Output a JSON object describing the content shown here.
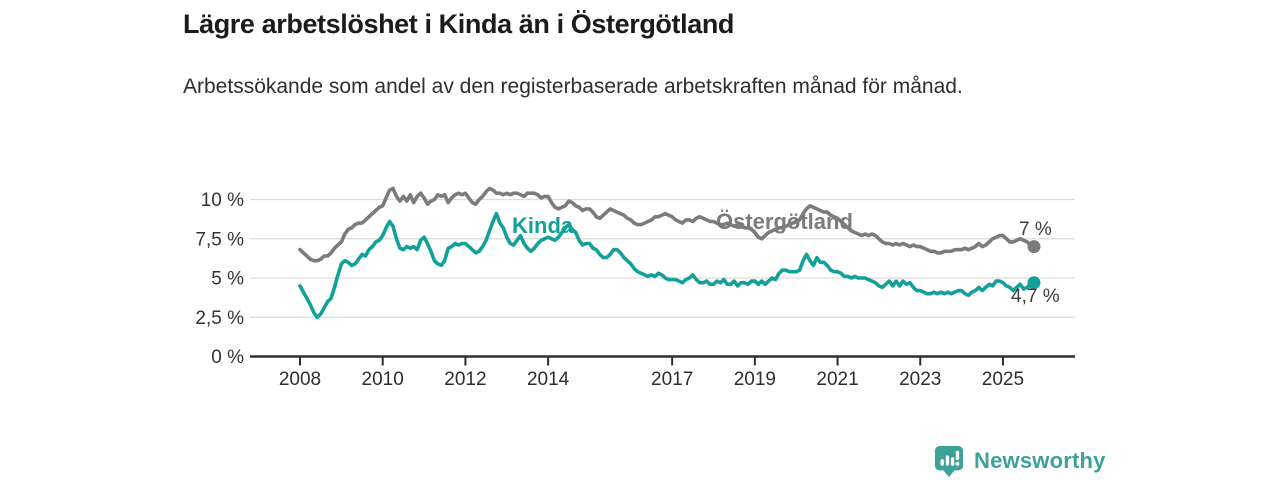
{
  "title": "Lägre arbetslöshet i Kinda än i Östergötland",
  "subtitle": "Arbetssökande som andel av den registerbaserade arbetskraften månad för månad.",
  "chart_data": {
    "type": "line",
    "unit": "%",
    "frequency": "monthly",
    "x_start": {
      "year": 2008,
      "month": 1
    },
    "x_end": {
      "year": 2025,
      "month": 10
    },
    "x_tick_years": [
      2008,
      2010,
      2012,
      2014,
      2017,
      2019,
      2021,
      2023,
      2025
    ],
    "y_ticks": [
      {
        "value": 0,
        "label": "0 %"
      },
      {
        "value": 2.5,
        "label": "2,5 %"
      },
      {
        "value": 5,
        "label": "5 %"
      },
      {
        "value": 7.5,
        "label": "7,5 %"
      },
      {
        "value": 10,
        "label": "10 %"
      }
    ],
    "ylim": [
      0,
      11
    ],
    "grid": "horizontal",
    "legend_position": "inline-labels",
    "series": [
      {
        "name": "Östergötland",
        "color": "#7b7b7b",
        "end_label": "7 %",
        "end_value": 7.0,
        "values": [
          6.8,
          6.6,
          6.4,
          6.2,
          6.1,
          6.1,
          6.2,
          6.4,
          6.4,
          6.6,
          6.9,
          7.1,
          7.3,
          7.8,
          8.1,
          8.2,
          8.4,
          8.5,
          8.5,
          8.7,
          8.9,
          9.1,
          9.3,
          9.5,
          9.6,
          10.1,
          10.6,
          10.7,
          10.2,
          9.9,
          10.2,
          9.9,
          10.3,
          9.8,
          10.2,
          10.4,
          10.1,
          9.7,
          9.9,
          10.0,
          10.3,
          10.2,
          10.3,
          9.8,
          10.1,
          10.3,
          10.4,
          10.3,
          10.4,
          10.1,
          9.8,
          9.7,
          10.0,
          10.2,
          10.5,
          10.7,
          10.6,
          10.4,
          10.4,
          10.3,
          10.4,
          10.3,
          10.4,
          10.4,
          10.3,
          10.2,
          10.4,
          10.4,
          10.4,
          10.3,
          10.1,
          10.2,
          10.2,
          9.8,
          9.5,
          9.4,
          9.5,
          9.6,
          9.9,
          9.8,
          9.6,
          9.5,
          9.3,
          9.4,
          9.4,
          9.2,
          8.9,
          8.8,
          9.0,
          9.2,
          9.4,
          9.3,
          9.2,
          9.1,
          9.0,
          8.8,
          8.7,
          8.5,
          8.4,
          8.4,
          8.5,
          8.6,
          8.7,
          8.9,
          8.9,
          9.0,
          9.1,
          9.0,
          8.9,
          8.7,
          8.6,
          8.5,
          8.7,
          8.7,
          8.6,
          8.8,
          8.9,
          8.8,
          8.7,
          8.6,
          8.6,
          8.5,
          8.4,
          8.4,
          8.5,
          8.4,
          8.3,
          8.4,
          8.3,
          8.2,
          8.2,
          8.1,
          7.9,
          7.6,
          7.5,
          7.7,
          7.9,
          8.0,
          8.1,
          8.2,
          8.2,
          8.3,
          8.4,
          8.5,
          8.6,
          8.7,
          9.1,
          9.4,
          9.6,
          9.5,
          9.4,
          9.3,
          9.2,
          9.2,
          9.0,
          8.9,
          8.8,
          8.6,
          8.4,
          8.2,
          8.0,
          7.9,
          7.8,
          7.7,
          7.8,
          7.7,
          7.8,
          7.7,
          7.5,
          7.3,
          7.2,
          7.2,
          7.1,
          7.2,
          7.1,
          7.2,
          7.1,
          7.0,
          7.1,
          7.0,
          7.0,
          6.9,
          6.8,
          6.7,
          6.7,
          6.6,
          6.6,
          6.7,
          6.7,
          6.7,
          6.8,
          6.8,
          6.8,
          6.9,
          6.8,
          6.9,
          7.0,
          7.2,
          7.0,
          7.1,
          7.3,
          7.5,
          7.6,
          7.7,
          7.7,
          7.5,
          7.3,
          7.3,
          7.4,
          7.5,
          7.4,
          7.3,
          7.1,
          7.0
        ]
      },
      {
        "name": "Kinda",
        "color": "#12a198",
        "end_label": "4,7 %",
        "end_value": 4.7,
        "values": [
          4.5,
          4.1,
          3.7,
          3.3,
          2.8,
          2.5,
          2.7,
          3.1,
          3.5,
          3.7,
          4.4,
          5.2,
          5.9,
          6.1,
          6.0,
          5.8,
          5.9,
          6.2,
          6.5,
          6.4,
          6.8,
          7.0,
          7.3,
          7.4,
          7.7,
          8.2,
          8.6,
          8.3,
          7.5,
          6.9,
          6.8,
          7.0,
          6.9,
          7.0,
          6.8,
          7.4,
          7.6,
          7.2,
          6.7,
          6.1,
          5.9,
          5.8,
          6.1,
          6.9,
          7.0,
          7.2,
          7.1,
          7.2,
          7.2,
          7.0,
          6.8,
          6.6,
          6.7,
          7.0,
          7.4,
          8.0,
          8.6,
          9.1,
          8.5,
          8.2,
          7.6,
          7.2,
          7.1,
          7.4,
          7.7,
          7.2,
          6.9,
          6.7,
          6.9,
          7.2,
          7.4,
          7.5,
          7.6,
          7.5,
          7.4,
          7.6,
          7.9,
          8.2,
          8.4,
          8.1,
          7.9,
          7.4,
          7.1,
          7.2,
          7.2,
          6.9,
          6.8,
          6.5,
          6.3,
          6.3,
          6.5,
          6.8,
          6.8,
          6.6,
          6.3,
          6.1,
          5.9,
          5.6,
          5.4,
          5.3,
          5.2,
          5.1,
          5.2,
          5.1,
          5.3,
          5.2,
          5.0,
          4.9,
          4.9,
          4.9,
          4.8,
          4.7,
          4.9,
          5.0,
          5.2,
          4.9,
          4.7,
          4.7,
          4.8,
          4.6,
          4.6,
          4.8,
          4.7,
          4.9,
          4.6,
          4.6,
          4.8,
          4.5,
          4.7,
          4.7,
          4.6,
          4.8,
          4.8,
          4.6,
          4.8,
          4.6,
          4.8,
          5.0,
          4.9,
          5.3,
          5.5,
          5.5,
          5.4,
          5.4,
          5.4,
          5.5,
          6.1,
          6.5,
          6.1,
          5.8,
          6.3,
          6.0,
          6.0,
          5.8,
          5.5,
          5.4,
          5.4,
          5.3,
          5.1,
          5.1,
          5.0,
          5.1,
          5.0,
          5.0,
          5.0,
          4.9,
          4.8,
          4.7,
          4.5,
          4.4,
          4.6,
          4.8,
          4.5,
          4.8,
          4.5,
          4.8,
          4.6,
          4.7,
          4.4,
          4.2,
          4.2,
          4.1,
          4.0,
          4.0,
          4.1,
          4.0,
          4.1,
          4.0,
          4.1,
          4.0,
          4.1,
          4.2,
          4.2,
          4.0,
          3.9,
          4.1,
          4.2,
          4.4,
          4.2,
          4.4,
          4.6,
          4.5,
          4.8,
          4.8,
          4.7,
          4.5,
          4.4,
          4.2,
          4.4,
          4.6,
          4.3,
          4.4,
          4.6,
          4.7
        ]
      }
    ]
  },
  "footer": {
    "brand": "Newsworthy",
    "brand_color": "#3da19a"
  },
  "colors": {
    "kinda": "#12a198",
    "ostergotland": "#7b7b7b",
    "grid": "#dcdcdc",
    "axis": "#2e2e2e",
    "text": "#333333"
  }
}
